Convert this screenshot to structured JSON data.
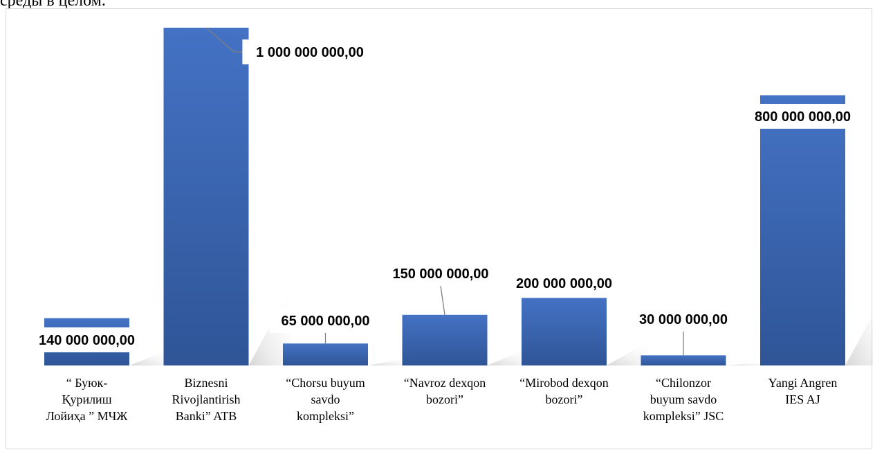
{
  "page": {
    "heading": "среды в целом."
  },
  "chart_data": {
    "type": "bar",
    "categories": [
      "“ Буюк-Қурилиш Лойиҳа ” МЧЖ",
      "Biznesni Rivojlantirish Banki” ATB",
      "“Chorsu buyum savdo kompleksi”",
      "“Navroz dexqon bozori”",
      "“Mirobod dexqon bozori”",
      "“Chilonzor buyum savdo kompleksi” JSC",
      "Yangi Angren IES AJ"
    ],
    "category_lines": [
      [
        "“ Буюк-",
        "Қурилиш",
        "Лойиҳа ” МЧЖ"
      ],
      [
        "Biznesni",
        "Rivojlantirish",
        "Banki” ATB"
      ],
      [
        "“Chorsu buyum",
        "savdo",
        "kompleksi”"
      ],
      [
        "“Navroz dexqon",
        "bozori”"
      ],
      [
        "“Mirobod dexqon",
        "bozori”"
      ],
      [
        "“Chilonzor",
        "buyum savdo",
        "kompleksi” JSC"
      ],
      [
        "Yangi Angren",
        "IES AJ"
      ]
    ],
    "values": [
      140000000,
      1000000000,
      65000000,
      150000000,
      200000000,
      30000000,
      800000000
    ],
    "data_labels": [
      "140 000 000,00",
      "1 000 000 000,00",
      "65 000 000,00",
      "150 000 000,00",
      "200 000 000,00",
      "30 000 000,00",
      "800 000 000,00"
    ],
    "title": "",
    "xlabel": "",
    "ylabel": "",
    "ylim": [
      0,
      1000000000
    ],
    "grid": false,
    "legend": "none",
    "bar_color_top": "#4472c4",
    "bar_color_bottom": "#2f5597"
  }
}
